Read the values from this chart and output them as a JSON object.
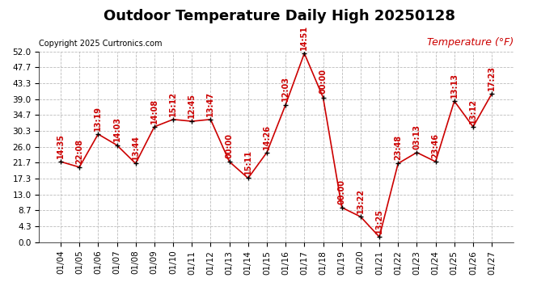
{
  "title": "Outdoor Temperature Daily High 20250128",
  "copyright": "Copyright 2025 Curtronics.com",
  "ylabel": "Temperature (°F)",
  "dates": [
    "01/04",
    "01/05",
    "01/06",
    "01/07",
    "01/08",
    "01/09",
    "01/10",
    "01/11",
    "01/12",
    "01/13",
    "01/14",
    "01/15",
    "01/16",
    "01/17",
    "01/18",
    "01/19",
    "01/20",
    "01/21",
    "01/22",
    "01/23",
    "01/24",
    "01/25",
    "01/26",
    "01/27"
  ],
  "times": [
    "14:35",
    "22:08",
    "13:19",
    "14:03",
    "13:44",
    "14:08",
    "15:12",
    "12:45",
    "13:47",
    "00:00",
    "15:11",
    "14:26",
    "12:03",
    "14:51",
    "00:00",
    "00:00",
    "13:22",
    "13:25",
    "23:48",
    "03:13",
    "23:46",
    "13:13",
    "13:12",
    "17:23"
  ],
  "temps": [
    22.0,
    20.5,
    29.5,
    26.5,
    21.5,
    31.5,
    33.5,
    33.0,
    33.5,
    22.0,
    17.5,
    24.5,
    37.5,
    51.5,
    39.5,
    9.5,
    7.0,
    1.5,
    21.5,
    24.5,
    22.0,
    38.5,
    31.5,
    40.5
  ],
  "ylim_min": 0.0,
  "ylim_max": 52.0,
  "yticks": [
    0.0,
    4.3,
    8.7,
    13.0,
    17.3,
    21.7,
    26.0,
    30.3,
    34.7,
    39.0,
    43.3,
    47.7,
    52.0
  ],
  "line_color": "#cc0000",
  "marker_color": "#000000",
  "bg_color": "#ffffff",
  "grid_color": "#bbbbbb",
  "title_fontsize": 13,
  "tick_fontsize": 7.5,
  "annot_fontsize": 7,
  "copy_fontsize": 7,
  "ylabel_fontsize": 9
}
